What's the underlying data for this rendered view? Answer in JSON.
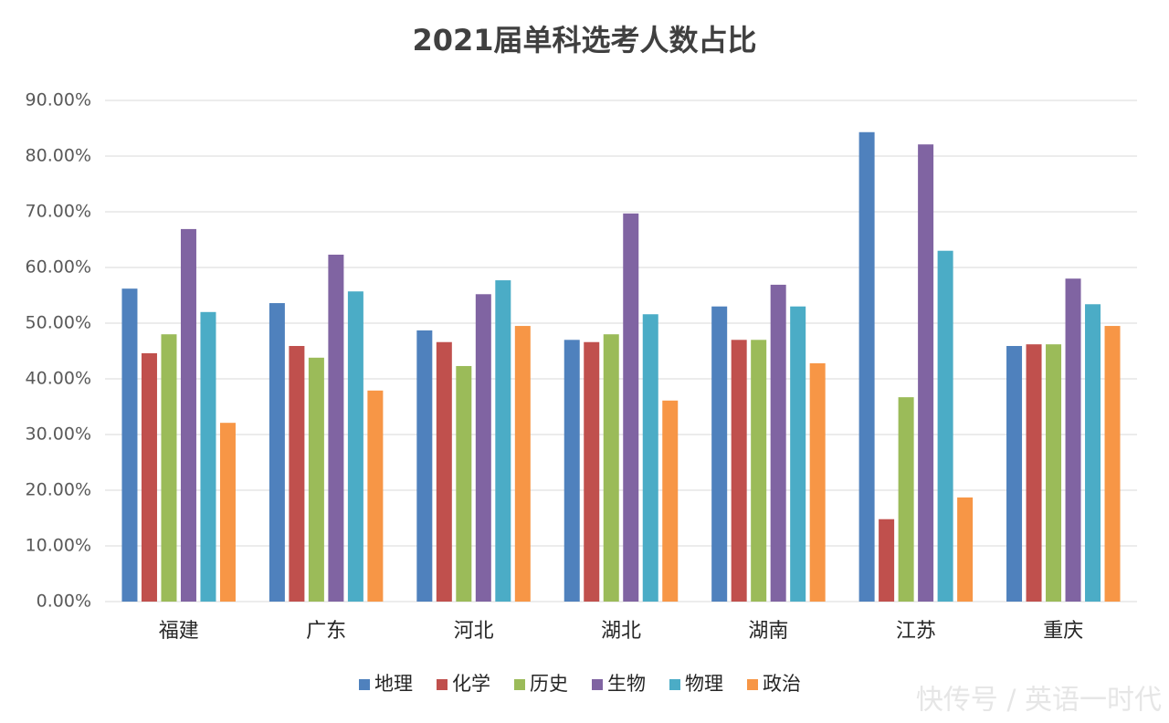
{
  "chart_data": {
    "type": "bar",
    "title": "2021届单科选考人数占比",
    "categories": [
      "福建",
      "广东",
      "河北",
      "湖北",
      "湖南",
      "江苏",
      "重庆"
    ],
    "series": [
      {
        "name": "地理",
        "color": "#4f81bd",
        "values": [
          56.2,
          53.6,
          48.7,
          47.0,
          53.0,
          84.3,
          45.9
        ]
      },
      {
        "name": "化学",
        "color": "#c0504d",
        "values": [
          44.6,
          45.9,
          46.6,
          46.6,
          47.0,
          14.8,
          46.2
        ]
      },
      {
        "name": "历史",
        "color": "#9bbb59",
        "values": [
          48.0,
          43.8,
          42.3,
          48.0,
          47.0,
          36.7,
          46.2
        ]
      },
      {
        "name": "生物",
        "color": "#8064a2",
        "values": [
          66.9,
          62.3,
          55.2,
          69.7,
          56.9,
          82.1,
          58.0
        ]
      },
      {
        "name": "物理",
        "color": "#4bacc6",
        "values": [
          52.0,
          55.7,
          57.7,
          51.6,
          53.0,
          63.0,
          53.4
        ]
      },
      {
        "name": "政治",
        "color": "#f79646",
        "values": [
          32.1,
          37.9,
          49.5,
          36.1,
          42.8,
          18.7,
          49.5
        ]
      }
    ],
    "ylim": [
      0,
      90
    ],
    "yticks": [
      {
        "value": 0,
        "label": "0.00%"
      },
      {
        "value": 10,
        "label": "10.00%"
      },
      {
        "value": 20,
        "label": "20.00%"
      },
      {
        "value": 30,
        "label": "30.00%"
      },
      {
        "value": 40,
        "label": "40.00%"
      },
      {
        "value": 50,
        "label": "50.00%"
      },
      {
        "value": 60,
        "label": "60.00%"
      },
      {
        "value": 70,
        "label": "70.00%"
      },
      {
        "value": 80,
        "label": "80.00%"
      },
      {
        "value": 90,
        "label": "90.00%"
      }
    ],
    "grid": true,
    "legend": "bottom",
    "watermark": "快传号 / 英语一时代"
  }
}
